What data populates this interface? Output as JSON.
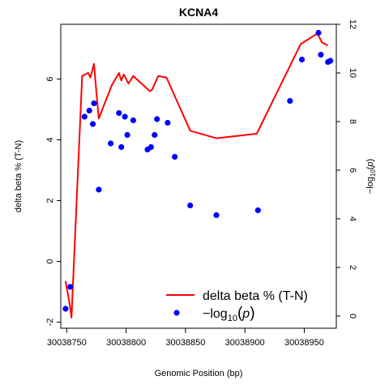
{
  "chart_data": {
    "type": "line",
    "title": "KCNA4",
    "xlabel": "Genomic Position (bp)",
    "ylabel_left": "delta beta % (T-N)",
    "ylabel_right": "−log10(p)",
    "xlim": [
      30038745,
      30038977
    ],
    "x_ticks": [
      30038750,
      30038800,
      30038850,
      30038900,
      30038950
    ],
    "x_tick_labels": [
      "30038750",
      "30038800",
      "30038850",
      "30038900",
      "30038950"
    ],
    "ylim_left": [
      -2.2,
      7.8
    ],
    "y_ticks_left": [
      -2,
      0,
      2,
      4,
      6
    ],
    "y_tick_labels_left": [
      "-2",
      "0",
      "2",
      "4",
      "6"
    ],
    "ylim_right": [
      -0.5,
      12
    ],
    "y_ticks_right": [
      0,
      2,
      4,
      6,
      8,
      10,
      12
    ],
    "y_tick_labels_right": [
      "0",
      "2",
      "4",
      "6",
      "8",
      "10",
      "12"
    ],
    "series": [
      {
        "name": "delta beta % (T-N)",
        "axis": "left",
        "style": "line",
        "color": "#ff0000",
        "x": [
          30038749,
          30038752,
          30038754,
          30038763,
          30038768,
          30038770,
          30038773,
          30038774,
          30038777,
          30038788,
          30038794,
          30038796,
          30038798,
          30038802,
          30038806,
          30038820,
          30038822,
          30038827,
          30038834,
          30038854,
          30038876,
          30038910,
          30038947,
          30038961,
          30038965,
          30038970
        ],
        "y": [
          -0.65,
          -1.3,
          -1.85,
          6.1,
          6.2,
          6.05,
          6.5,
          6.0,
          4.7,
          5.8,
          6.2,
          5.95,
          6.15,
          5.85,
          6.1,
          5.6,
          5.65,
          6.1,
          6.05,
          4.3,
          4.05,
          4.2,
          7.15,
          7.5,
          7.2,
          7.1
        ]
      },
      {
        "name": "−log10(p)",
        "axis": "right",
        "style": "points",
        "color": "#0000ff",
        "x": [
          30038749,
          30038753,
          30038765,
          30038769,
          30038772,
          30038773,
          30038777,
          30038787,
          30038794,
          30038796,
          30038799,
          30038801,
          30038806,
          30038818,
          30038821,
          30038824,
          30038826,
          30038835,
          30038841,
          30038854,
          30038876,
          30038911,
          30038938,
          30038948,
          30038962,
          30038964,
          30038970,
          30038972
        ],
        "y": [
          0.3,
          1.2,
          8.2,
          8.45,
          7.9,
          8.75,
          5.2,
          7.1,
          8.35,
          6.95,
          8.2,
          7.45,
          8.05,
          6.85,
          6.95,
          7.45,
          8.1,
          7.95,
          6.55,
          4.55,
          4.15,
          4.35,
          8.85,
          10.55,
          11.65,
          10.75,
          10.45,
          10.5
        ]
      }
    ],
    "legend": {
      "position": "bottom-right",
      "entries": [
        {
          "label": "delta beta % (T-N)",
          "color": "#ff0000",
          "style": "line"
        },
        {
          "label": "−log",
          "sub": "10",
          "paren_open": "(",
          "var": "p",
          "paren_close": ")",
          "color": "#0000ff",
          "style": "point"
        }
      ]
    },
    "grid": false
  }
}
